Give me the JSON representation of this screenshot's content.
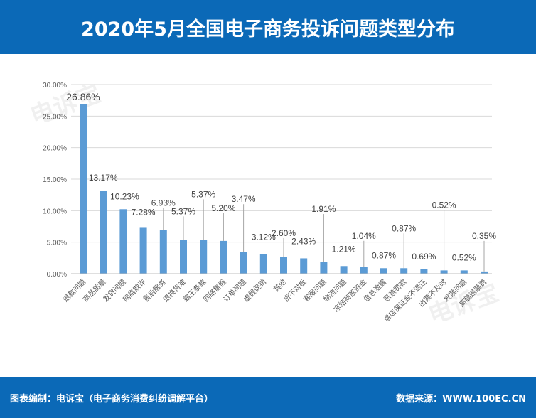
{
  "header": {
    "title": "2020年5月全国电子商务投诉问题类型分布"
  },
  "footer": {
    "left": "图表编制：电诉宝（电子商务消费纠纷调解平台）",
    "right": "数据来源：WWW.100EC.CN"
  },
  "watermark": "电诉宝",
  "colors": {
    "header": "#0b69b7",
    "bar": "#5b9bd5"
  },
  "chart_data": {
    "type": "bar",
    "title": "2020年5月全国电子商务投诉问题类型分布",
    "categories": [
      "退款问题",
      "商品质量",
      "发货问题",
      "网络欺诈",
      "售后服务",
      "退换货难",
      "霸王条款",
      "网络售假",
      "订单问题",
      "虚假促销",
      "其他",
      "货不对板",
      "客服问题",
      "物流问题",
      "冻结商家资金",
      "信息泄露",
      "恶意罚款",
      "退店保证金不退还",
      "出票不及时",
      "发票问题",
      "高额退票费"
    ],
    "values": [
      26.86,
      13.17,
      10.23,
      7.28,
      6.93,
      5.37,
      5.37,
      5.2,
      3.47,
      3.12,
      2.6,
      2.43,
      1.91,
      1.21,
      1.04,
      0.87,
      0.87,
      0.69,
      0.52,
      0.52,
      0.35
    ],
    "data_labels": [
      "26.86%",
      "13.17%",
      "10.23%",
      "7.28%",
      "6.93%",
      "5.37%",
      "5.37%",
      "5.20%",
      "3.47%",
      "3.12%",
      "2.60%",
      "2.43%",
      "1.91%",
      "1.21%",
      "1.04%",
      "0.87%",
      "0.87%",
      "0.69%",
      "0.52%",
      "0.52%",
      "0.35%"
    ],
    "yticks": [
      "0.00%",
      "5.00%",
      "10.00%",
      "15.00%",
      "20.00%",
      "25.00%",
      "30.00%"
    ],
    "ylim": [
      0,
      30
    ],
    "grid": true,
    "legend": "none"
  }
}
